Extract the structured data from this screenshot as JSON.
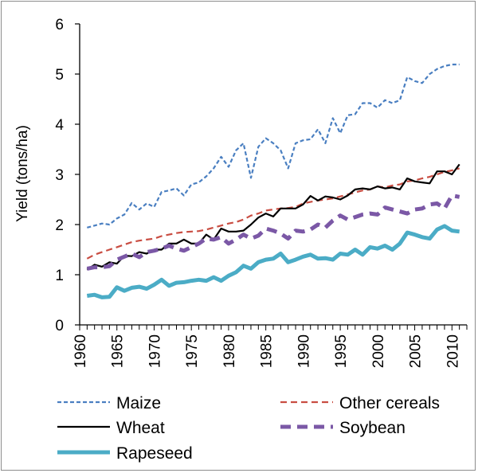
{
  "chart_data": {
    "type": "line",
    "title": "",
    "xlabel": "",
    "ylabel": "Yield (tons/ha)",
    "xlim": [
      1960,
      2012
    ],
    "ylim": [
      0,
      6
    ],
    "yticks": [
      0,
      1,
      2,
      3,
      4,
      5,
      6
    ],
    "xticks": [
      1960,
      1965,
      1970,
      1975,
      1980,
      1985,
      1990,
      1995,
      2000,
      2005,
      2010
    ],
    "grid": false,
    "legend_placement": "bottom",
    "x": [
      1961,
      1962,
      1963,
      1964,
      1965,
      1966,
      1967,
      1968,
      1969,
      1970,
      1971,
      1972,
      1973,
      1974,
      1975,
      1976,
      1977,
      1978,
      1979,
      1980,
      1981,
      1982,
      1983,
      1984,
      1985,
      1986,
      1987,
      1988,
      1989,
      1990,
      1991,
      1992,
      1993,
      1994,
      1995,
      1996,
      1997,
      1998,
      1999,
      2000,
      2001,
      2002,
      2003,
      2004,
      2005,
      2006,
      2007,
      2008,
      2009,
      2010,
      2011
    ],
    "series": [
      {
        "name": "Maize",
        "color": "#4a7fc1",
        "style": "dotted-thin",
        "values": [
          1.94,
          1.98,
          2.02,
          2.0,
          2.12,
          2.2,
          2.43,
          2.3,
          2.42,
          2.35,
          2.65,
          2.68,
          2.72,
          2.58,
          2.8,
          2.84,
          2.96,
          3.12,
          3.35,
          3.15,
          3.48,
          3.62,
          2.93,
          3.55,
          3.72,
          3.62,
          3.48,
          3.12,
          3.62,
          3.68,
          3.7,
          3.9,
          3.62,
          4.12,
          3.82,
          4.18,
          4.2,
          4.42,
          4.42,
          4.33,
          4.48,
          4.42,
          4.48,
          4.94,
          4.86,
          4.82,
          5.0,
          5.1,
          5.16,
          5.19,
          5.19
        ]
      },
      {
        "name": "Other cereals",
        "color": "#c94d42",
        "style": "dashed-thin",
        "values": [
          1.32,
          1.4,
          1.45,
          1.5,
          1.55,
          1.6,
          1.65,
          1.68,
          1.7,
          1.72,
          1.77,
          1.8,
          1.83,
          1.85,
          1.86,
          1.87,
          1.9,
          1.94,
          1.98,
          2.02,
          2.05,
          2.1,
          2.18,
          2.22,
          2.28,
          2.3,
          2.32,
          2.33,
          2.35,
          2.42,
          2.45,
          2.48,
          2.5,
          2.52,
          2.56,
          2.6,
          2.64,
          2.68,
          2.7,
          2.76,
          2.74,
          2.78,
          2.8,
          2.86,
          2.88,
          2.92,
          2.95,
          3.0,
          3.05,
          3.08,
          3.12
        ]
      },
      {
        "name": "Wheat",
        "color": "#000000",
        "style": "solid-thin",
        "values": [
          1.1,
          1.2,
          1.16,
          1.25,
          1.22,
          1.38,
          1.37,
          1.45,
          1.42,
          1.5,
          1.5,
          1.62,
          1.62,
          1.7,
          1.62,
          1.62,
          1.8,
          1.7,
          1.92,
          1.86,
          1.86,
          1.88,
          2.0,
          2.14,
          2.22,
          2.16,
          2.32,
          2.32,
          2.32,
          2.4,
          2.57,
          2.48,
          2.56,
          2.54,
          2.5,
          2.58,
          2.7,
          2.72,
          2.7,
          2.76,
          2.72,
          2.74,
          2.7,
          2.92,
          2.86,
          2.84,
          2.82,
          3.06,
          3.06,
          3.0,
          3.2
        ]
      },
      {
        "name": "Soybean",
        "color": "#7b58a6",
        "style": "dashed-thick",
        "values": [
          1.12,
          1.15,
          1.15,
          1.17,
          1.3,
          1.36,
          1.42,
          1.35,
          1.45,
          1.48,
          1.52,
          1.58,
          1.52,
          1.48,
          1.55,
          1.62,
          1.72,
          1.7,
          1.75,
          1.62,
          1.7,
          1.8,
          1.72,
          1.78,
          1.92,
          1.88,
          1.82,
          1.72,
          1.88,
          1.86,
          1.9,
          2.0,
          1.94,
          2.08,
          2.18,
          2.1,
          2.15,
          2.2,
          2.22,
          2.2,
          2.34,
          2.3,
          2.26,
          2.22,
          2.3,
          2.32,
          2.4,
          2.42,
          2.32,
          2.58,
          2.55
        ]
      },
      {
        "name": "Rapeseed",
        "color": "#4bacc6",
        "style": "solid-thick",
        "values": [
          0.58,
          0.6,
          0.55,
          0.56,
          0.75,
          0.68,
          0.74,
          0.76,
          0.72,
          0.8,
          0.9,
          0.78,
          0.84,
          0.85,
          0.88,
          0.9,
          0.88,
          0.95,
          0.88,
          0.98,
          1.05,
          1.18,
          1.12,
          1.25,
          1.3,
          1.32,
          1.42,
          1.25,
          1.3,
          1.36,
          1.4,
          1.32,
          1.33,
          1.3,
          1.42,
          1.4,
          1.5,
          1.4,
          1.55,
          1.52,
          1.58,
          1.5,
          1.62,
          1.84,
          1.8,
          1.75,
          1.72,
          1.9,
          1.97,
          1.88,
          1.86
        ]
      }
    ]
  }
}
